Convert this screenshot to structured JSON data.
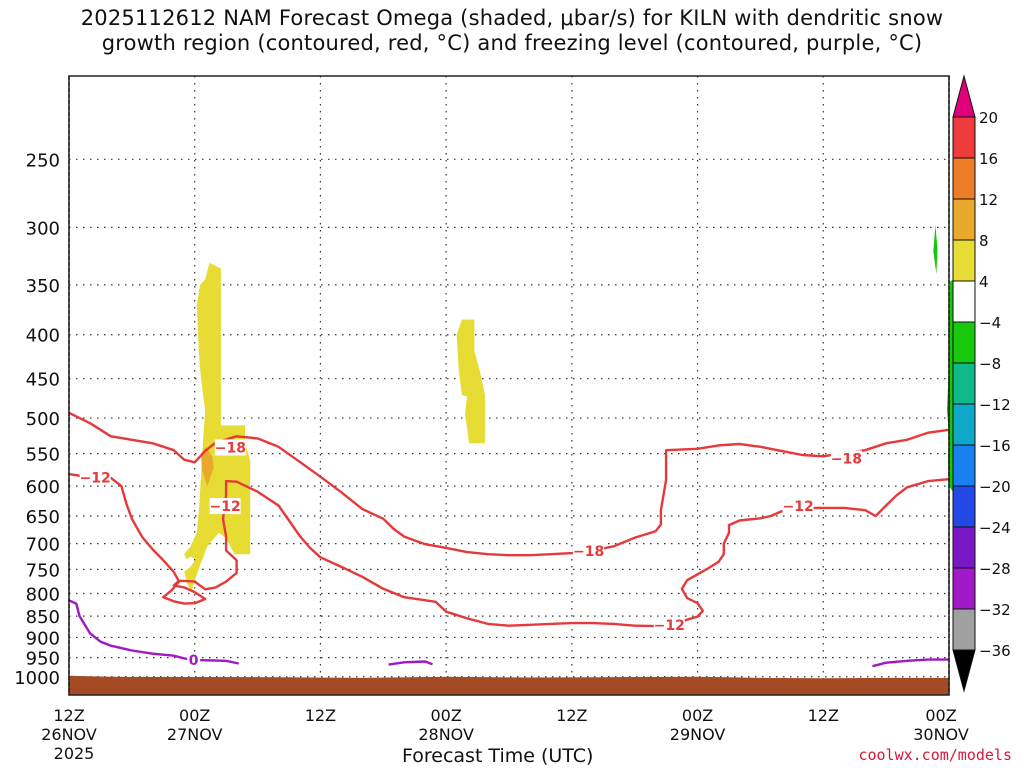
{
  "chart_data": {
    "type": "heatmap",
    "title_lines": [
      "2025112612 NAM Forecast Omega (shaded, μbar/s) for KILN with dendritic snow",
      "growth region (contoured, red, °C) and freezing level (contoured, purple, °C)"
    ],
    "xlabel": "Forecast Time (UTC)",
    "x_ticks": [
      {
        "hour": 0,
        "lines": [
          "12Z",
          "26NOV",
          "2025"
        ]
      },
      {
        "hour": 12,
        "lines": [
          "00Z",
          "27NOV"
        ]
      },
      {
        "hour": 24,
        "lines": [
          "12Z"
        ]
      },
      {
        "hour": 36,
        "lines": [
          "00Z",
          "28NOV"
        ]
      },
      {
        "hour": 48,
        "lines": [
          "12Z"
        ]
      },
      {
        "hour": 60,
        "lines": [
          "00Z",
          "29NOV"
        ]
      },
      {
        "hour": 72,
        "lines": [
          "12Z"
        ]
      },
      {
        "hour": 84,
        "lines": [
          "00Z",
          "30NOV"
        ]
      }
    ],
    "xlim": [
      0,
      84
    ],
    "y_scale": "log-pressure (inverted)",
    "y_ticks": [
      250,
      300,
      350,
      400,
      450,
      500,
      550,
      600,
      650,
      700,
      750,
      800,
      850,
      900,
      950,
      1000
    ],
    "ylim": [
      200,
      1050
    ],
    "grid": true,
    "colorbar": {
      "labels": [
        "20",
        "16",
        "12",
        "8",
        "4",
        "−4",
        "−8",
        "−12",
        "−16",
        "−20",
        "−24",
        "−28",
        "−32",
        "−36"
      ],
      "colors": [
        "#e0007a",
        "#ee3b3b",
        "#ee7d28",
        "#e8a92c",
        "#e6dc34",
        "#ffffff",
        "#18c80c",
        "#10b88a",
        "#10a8c8",
        "#1880f0",
        "#2448e6",
        "#7a18c8",
        "#a018c8",
        "#a0a0a0",
        "#000000"
      ]
    },
    "contour_labels": [
      {
        "text": "−18",
        "color": "#e6393a"
      },
      {
        "text": "−12",
        "color": "#e6393a"
      },
      {
        "text": "0",
        "color": "#a018c8"
      }
    ],
    "contour_label_positions": [
      {
        "label": "−18",
        "hour": 15.4,
        "p": 541
      },
      {
        "label": "−12",
        "hour": 2.5,
        "p": 586
      },
      {
        "label": "−12",
        "hour": 14.9,
        "p": 633
      },
      {
        "label": "−18",
        "hour": 49.6,
        "p": 714
      },
      {
        "label": "−18",
        "hour": 74.2,
        "p": 557
      },
      {
        "label": "−12",
        "hour": 69.6,
        "p": 633
      },
      {
        "label": "−12",
        "hour": 57.3,
        "p": 870
      },
      {
        "label": "0",
        "hour": 11.9,
        "p": 956
      }
    ],
    "series": [
      {
        "name": "−18",
        "color": "#e6393a",
        "points": [
          [
            0,
            493
          ],
          [
            2,
            507
          ],
          [
            4,
            525
          ],
          [
            6,
            530
          ],
          [
            8,
            535
          ],
          [
            10,
            545
          ],
          [
            11,
            559
          ],
          [
            12,
            563
          ],
          [
            13,
            546
          ],
          [
            14,
            534
          ],
          [
            16,
            525
          ],
          [
            18,
            528
          ],
          [
            20,
            540
          ],
          [
            22,
            562
          ],
          [
            24,
            585
          ],
          [
            26,
            610
          ],
          [
            28,
            638
          ],
          [
            30,
            655
          ],
          [
            31,
            673
          ],
          [
            32,
            687
          ],
          [
            34,
            701
          ],
          [
            36,
            708
          ],
          [
            38,
            716
          ],
          [
            40,
            720
          ],
          [
            42,
            722
          ],
          [
            44,
            722
          ],
          [
            46,
            720
          ],
          [
            48,
            718
          ],
          [
            50,
            713
          ],
          [
            52,
            705
          ],
          [
            53,
            697
          ],
          [
            54,
            689
          ],
          [
            55,
            683
          ],
          [
            56,
            677
          ],
          [
            56.5,
            665
          ],
          [
            56.5,
            640
          ],
          [
            57,
            590
          ],
          [
            57,
            545
          ],
          [
            60,
            543
          ],
          [
            62,
            538
          ],
          [
            64,
            536
          ],
          [
            66,
            540
          ],
          [
            68,
            546
          ],
          [
            70,
            552
          ],
          [
            72,
            554
          ],
          [
            74,
            549
          ],
          [
            76,
            545
          ],
          [
            78,
            535
          ],
          [
            80,
            530
          ],
          [
            82,
            520
          ],
          [
            84,
            516
          ]
        ]
      },
      {
        "name": "−12",
        "color": "#e6393a",
        "points": [
          [
            0,
            581
          ],
          [
            2,
            586
          ],
          [
            4,
            587
          ],
          [
            5,
            600
          ],
          [
            5.5,
            630
          ],
          [
            6,
            655
          ],
          [
            7,
            688
          ],
          [
            8,
            711
          ],
          [
            9,
            732
          ],
          [
            10,
            755
          ],
          [
            10.5,
            775
          ],
          [
            9.8,
            793
          ],
          [
            9,
            808
          ],
          [
            10,
            817
          ],
          [
            11,
            822
          ],
          [
            12,
            821
          ],
          [
            13,
            812
          ],
          [
            12,
            797
          ],
          [
            11,
            787
          ],
          [
            10,
            783
          ],
          [
            10.5,
            773
          ],
          [
            12,
            775
          ],
          [
            13,
            791
          ],
          [
            14,
            787
          ],
          [
            15,
            775
          ],
          [
            16,
            757
          ],
          [
            16,
            732
          ],
          [
            15,
            713
          ],
          [
            15,
            687
          ],
          [
            14.7,
            655
          ],
          [
            15,
            615
          ],
          [
            15,
            592
          ],
          [
            16,
            593
          ],
          [
            18,
            609
          ],
          [
            20,
            632
          ],
          [
            21,
            658
          ],
          [
            22,
            685
          ],
          [
            23,
            708
          ],
          [
            24,
            726
          ],
          [
            26,
            745
          ],
          [
            28,
            765
          ],
          [
            30,
            790
          ],
          [
            32,
            808
          ],
          [
            35,
            818
          ],
          [
            36,
            840
          ],
          [
            38,
            855
          ],
          [
            40,
            868
          ],
          [
            42,
            872
          ],
          [
            44,
            870
          ],
          [
            46,
            868
          ],
          [
            48,
            866
          ],
          [
            50,
            866
          ],
          [
            52,
            868
          ],
          [
            54,
            872
          ],
          [
            56,
            873
          ],
          [
            58,
            865
          ],
          [
            60,
            851
          ],
          [
            60.5,
            838
          ],
          [
            60,
            821
          ],
          [
            59,
            810
          ],
          [
            58.5,
            790
          ],
          [
            59,
            772
          ],
          [
            60,
            760
          ],
          [
            61,
            748
          ],
          [
            62,
            735
          ],
          [
            62.5,
            720
          ],
          [
            62.5,
            700
          ],
          [
            63,
            680
          ],
          [
            63,
            666
          ],
          [
            64,
            658
          ],
          [
            66,
            654
          ],
          [
            67,
            650
          ],
          [
            68,
            642
          ],
          [
            69,
            639
          ],
          [
            70,
            636
          ],
          [
            72,
            636
          ],
          [
            74,
            636
          ],
          [
            76,
            640
          ],
          [
            77,
            650
          ],
          [
            78,
            632
          ],
          [
            79,
            615
          ],
          [
            80,
            602
          ],
          [
            82,
            592
          ],
          [
            84,
            589
          ]
        ]
      },
      {
        "name": "0",
        "color": "#a018c8",
        "points": [
          [
            0,
            815
          ],
          [
            0.7,
            822
          ],
          [
            1,
            850
          ],
          [
            2,
            890
          ],
          [
            3,
            910
          ],
          [
            4,
            920
          ],
          [
            6,
            932
          ],
          [
            8,
            940
          ],
          [
            10,
            945
          ],
          [
            11,
            952
          ],
          [
            12,
            956
          ],
          [
            15,
            958
          ],
          [
            16.2,
            965
          ]
        ],
        "extra_segments": [
          [
            [
              30.5,
              968
            ],
            [
              32,
              962
            ],
            [
              34,
              960
            ],
            [
              34.7,
              967
            ]
          ],
          [
            [
              76.7,
              972
            ],
            [
              78,
              963
            ],
            [
              80,
              958
            ],
            [
              82,
              955
            ],
            [
              84,
              955
            ]
          ]
        ]
      }
    ],
    "shaded_regions": [
      {
        "value": "4 to 8",
        "color": "#e6dc34",
        "polygon": [
          [
            13.4,
            330
          ],
          [
            14.5,
            335
          ],
          [
            14.5,
            510
          ],
          [
            16.8,
            510
          ],
          [
            16.8,
            535
          ],
          [
            17.3,
            560
          ],
          [
            17.3,
            720
          ],
          [
            15.8,
            720
          ],
          [
            15,
            690
          ],
          [
            14.3,
            680
          ],
          [
            13.2,
            705
          ],
          [
            12.2,
            760
          ],
          [
            11.7,
            795
          ],
          [
            11.3,
            780
          ],
          [
            11,
            755
          ],
          [
            11.6,
            745
          ],
          [
            12.1,
            730
          ],
          [
            11.6,
            725
          ],
          [
            11.2,
            730
          ],
          [
            11,
            720
          ],
          [
            11.6,
            705
          ],
          [
            12.2,
            680
          ],
          [
            12.4,
            640
          ],
          [
            12.7,
            560
          ],
          [
            12.8,
            530
          ],
          [
            13,
            490
          ],
          [
            12.6,
            450
          ],
          [
            12.4,
            420
          ],
          [
            12.2,
            370
          ],
          [
            12.5,
            350
          ],
          [
            13,
            345
          ]
        ]
      },
      {
        "value": "4 to 8",
        "color": "#e6dc34",
        "polygon": [
          [
            37.5,
            384
          ],
          [
            38.7,
            384
          ],
          [
            38.7,
            418
          ],
          [
            39.2,
            440
          ],
          [
            39.7,
            470
          ],
          [
            39.7,
            535
          ],
          [
            38.2,
            535
          ],
          [
            37.8,
            495
          ],
          [
            38,
            472
          ],
          [
            37.5,
            470
          ],
          [
            37.2,
            440
          ],
          [
            37.1,
            420
          ],
          [
            37,
            400
          ]
        ]
      },
      {
        "value": "8 to 12",
        "color": "#e8a92c",
        "polygon": [
          [
            13.1,
            540
          ],
          [
            13.7,
            555
          ],
          [
            13.8,
            572
          ],
          [
            13.2,
            600
          ],
          [
            12.7,
            575
          ],
          [
            12.6,
            550
          ]
        ]
      },
      {
        "value": "−8 to −4",
        "color": "#18c80c",
        "polygon": [
          [
            84.1,
            347
          ],
          [
            84.4,
            345
          ],
          [
            84.4,
            610
          ],
          [
            84,
            600
          ],
          [
            83.9,
            560
          ],
          [
            84,
            520
          ],
          [
            83.8,
            490
          ],
          [
            83.9,
            460
          ],
          [
            84,
            420
          ]
        ]
      },
      {
        "value": "−8 to −4",
        "color": "#18c80c",
        "polygon": [
          [
            82.7,
            298
          ],
          [
            82.9,
            318
          ],
          [
            82.8,
            340
          ],
          [
            82.5,
            320
          ]
        ]
      }
    ],
    "terrain": {
      "color": "#a44b26"
    }
  },
  "credit": "coolwx.com/models"
}
